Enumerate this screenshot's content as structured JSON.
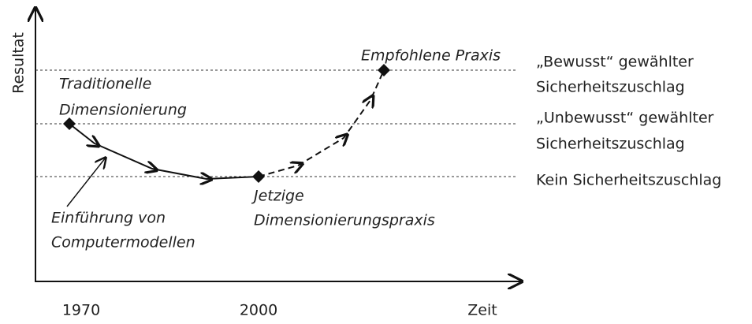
{
  "axes": {
    "y_label": "Resultat",
    "x_label": "Zeit",
    "x_ticks": [
      "1970",
      "2000"
    ]
  },
  "nodes": [
    {
      "label_lines": [
        "Traditionelle",
        "Dimensionierung"
      ]
    },
    {
      "label_lines": [
        "Jetzige",
        "Dimensionierungspraxis"
      ]
    },
    {
      "label_lines": [
        "Empfohlene Praxis"
      ]
    }
  ],
  "annotation": {
    "label_lines": [
      "Einführung von",
      "Computermodellen"
    ]
  },
  "levels": [
    {
      "label_lines": [
        "„Bewusst“ gewählter",
        "Sicherheitszuschlag"
      ]
    },
    {
      "label_lines": [
        "„Unbewusst“ gewählter",
        "Sicherheitszuschlag"
      ]
    },
    {
      "label_lines": [
        "Kein Sicherheitszuschlag"
      ]
    }
  ]
}
